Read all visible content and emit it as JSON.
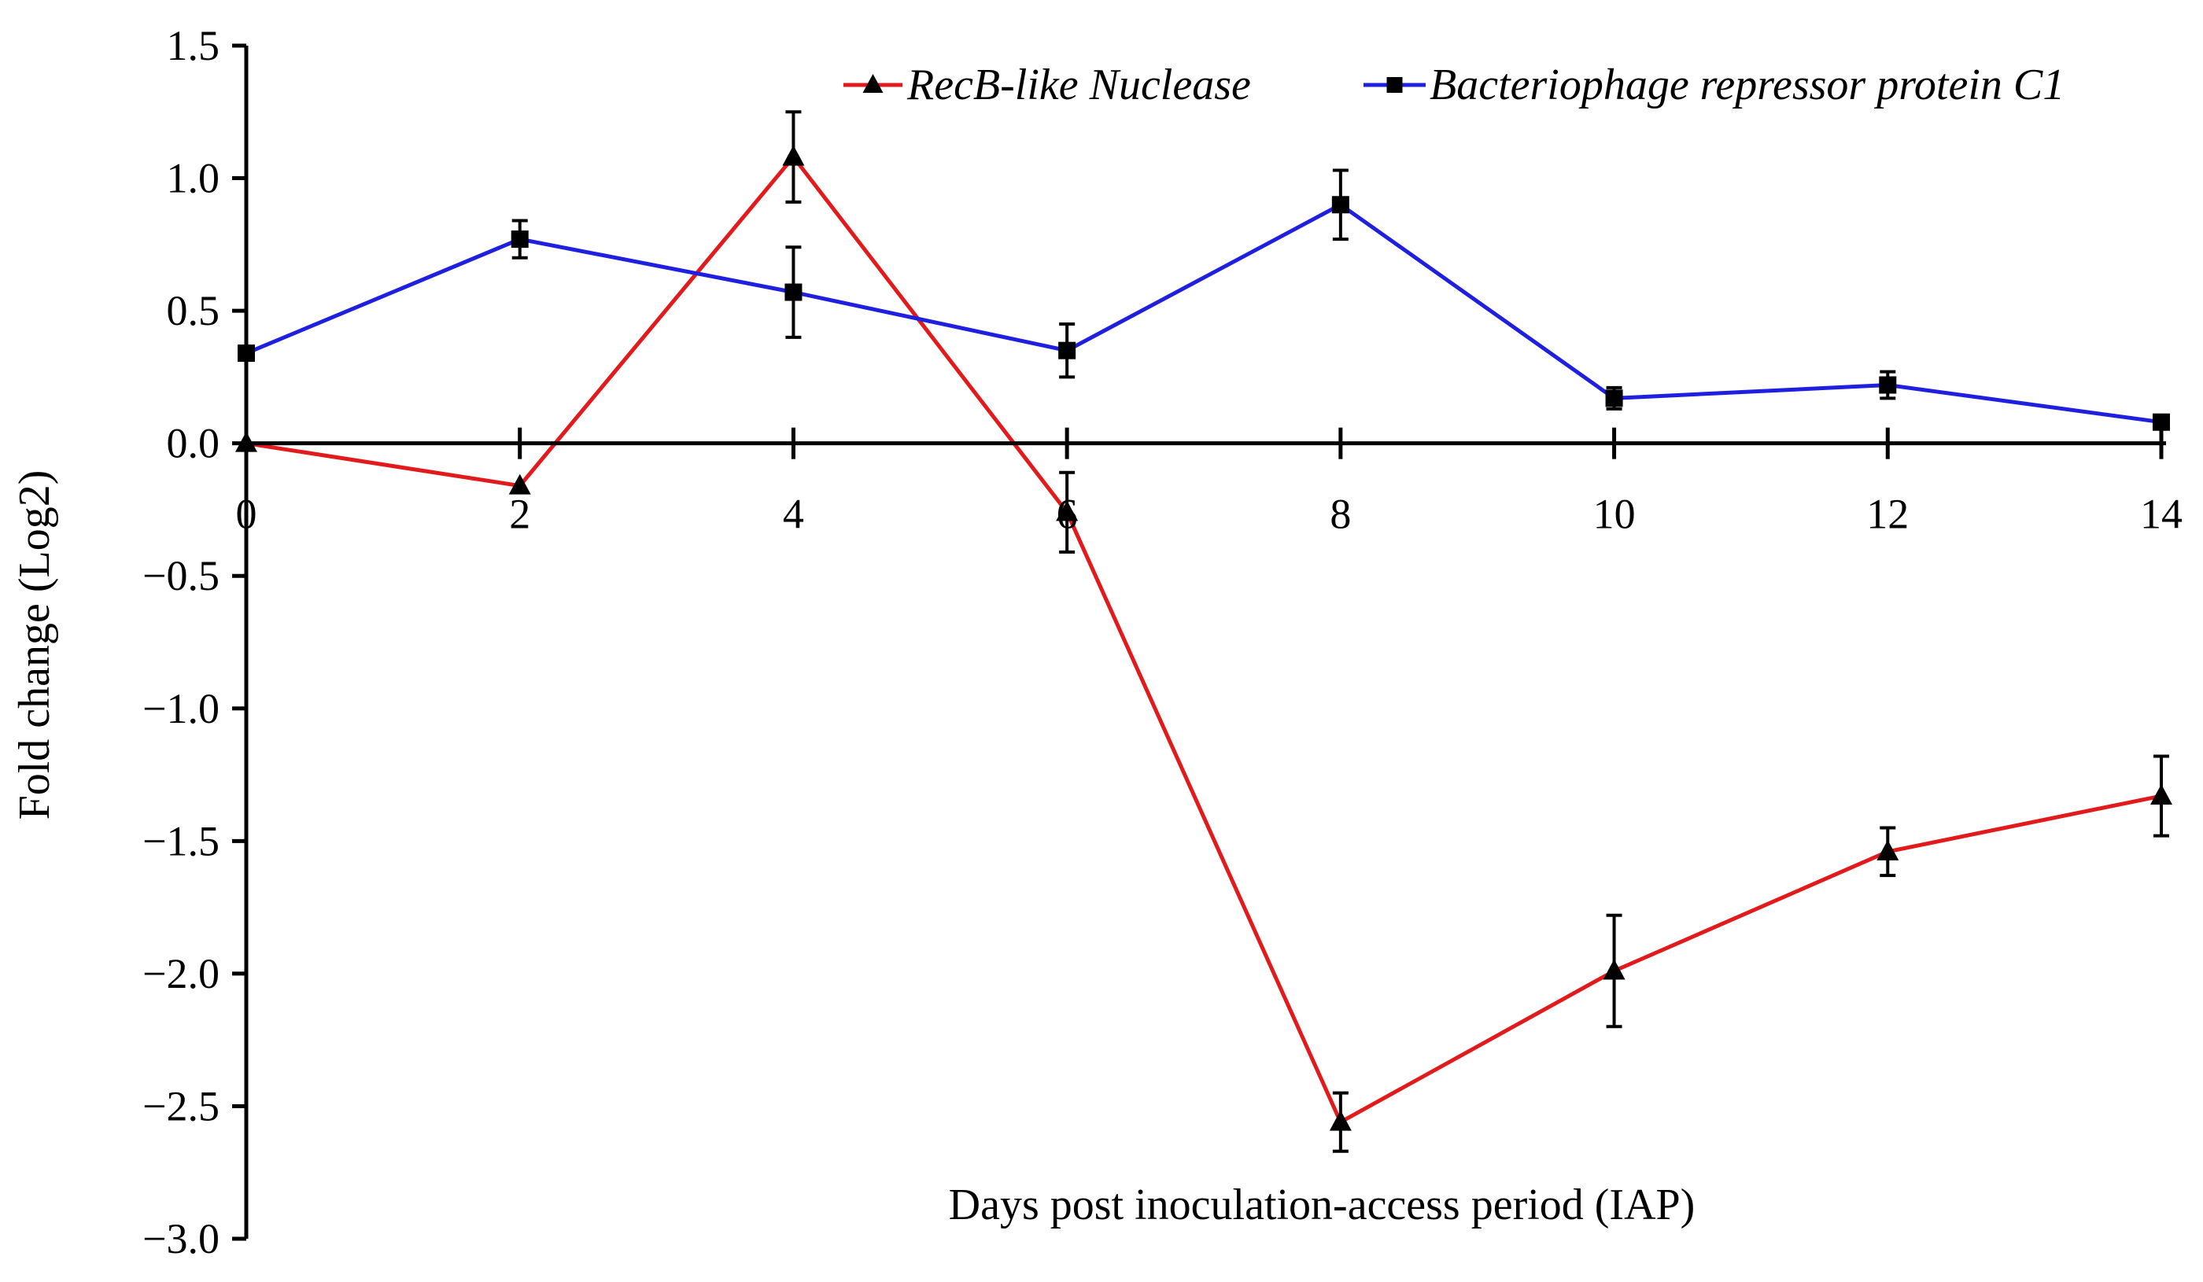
{
  "chart_data": {
    "type": "line",
    "title": "",
    "xlabel": "Days post inoculation-access period (IAP)",
    "ylabel": "Fold change (Log2)",
    "x": [
      0,
      2,
      4,
      6,
      8,
      10,
      12,
      14
    ],
    "x_tick_labels": [
      "0",
      "2",
      "4",
      "6",
      "8",
      "10",
      "12",
      "14"
    ],
    "y_tick_values": [
      1.5,
      1.0,
      0.5,
      0.0,
      -0.5,
      -1.0,
      -1.5,
      -2.0,
      -2.5,
      -3.0
    ],
    "y_tick_labels": [
      "1.5",
      "1.0",
      "0.5",
      "0.0",
      "−0.5",
      "−1.0",
      "−1.5",
      "−2.0",
      "−2.5",
      "−3.0"
    ],
    "xlim": [
      0,
      14
    ],
    "ylim": [
      -3.0,
      1.5
    ],
    "grid": false,
    "legend_position": "top-right",
    "series": [
      {
        "name": "RecB-like Nuclease",
        "color": "#e31a1c",
        "marker": "triangle",
        "values": [
          0.0,
          -0.16,
          1.08,
          -0.26,
          -2.56,
          -1.99,
          -1.54,
          -1.33
        ],
        "errors": [
          0.0,
          0.0,
          0.17,
          0.15,
          0.11,
          0.21,
          0.09,
          0.15
        ]
      },
      {
        "name": "Bacteriophage repressor protein C1",
        "color": "#1f1fe0",
        "marker": "square",
        "values": [
          0.34,
          0.77,
          0.57,
          0.35,
          0.9,
          0.17,
          0.22,
          0.08
        ],
        "errors": [
          0.0,
          0.07,
          0.17,
          0.1,
          0.13,
          0.04,
          0.05,
          0.0
        ]
      }
    ]
  }
}
